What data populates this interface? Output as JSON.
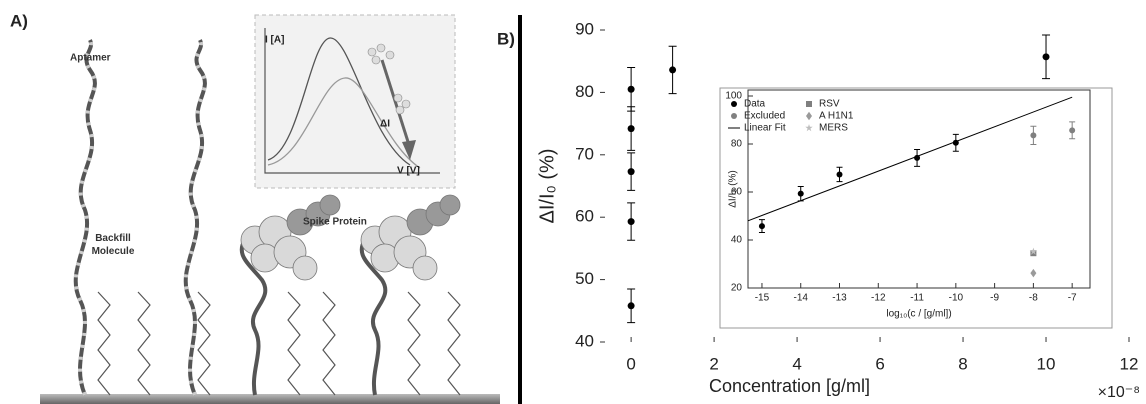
{
  "panel_labels": [
    "A)",
    "B)"
  ],
  "illustration": {
    "aptamer": "Aptamer",
    "backfill": "Backfill Molecule",
    "spike": "Spike Protein",
    "inset_y": "I [A]",
    "inset_delta": "ΔI",
    "inset_x": "V [V]"
  },
  "chart_data": [
    {
      "type": "scatter",
      "xlabel": "Concentration [g/ml]",
      "ylabel": "ΔI/I₀ (%)",
      "x_multiplier": "×10⁻⁸",
      "x": [
        0,
        0,
        0,
        0,
        0,
        1,
        10
      ],
      "values": [
        80.5,
        74.2,
        67.3,
        59.3,
        45.8,
        83.6,
        85.7
      ],
      "errors": [
        3.5,
        3.5,
        3,
        3,
        2.7,
        3.8,
        3.5
      ],
      "color": "#000000",
      "xlim": [
        -0.75,
        12
      ],
      "ylim": [
        40,
        90
      ],
      "xticks": [
        0,
        2,
        4,
        6,
        8,
        10,
        12
      ],
      "yticks": [
        40,
        50,
        60,
        70,
        80,
        90
      ]
    },
    {
      "type": "scatter",
      "xlabel": "log₁₀(c / [g/ml])",
      "ylabel": "ΔI/I₀ (%)",
      "xlim": [
        -15.36,
        -6.54
      ],
      "ylim": [
        20,
        100
      ],
      "xticks": [
        -15,
        -14,
        -13,
        -12,
        -11,
        -10,
        -9,
        -8,
        -7
      ],
      "yticks": [
        20,
        40,
        60,
        80,
        100
      ],
      "legend": "upper left",
      "series": [
        {
          "name": "Data",
          "color": "#000000",
          "marker": "circle",
          "x": [
            -15,
            -14,
            -13,
            -11,
            -10
          ],
          "values": [
            45.8,
            59.3,
            67.3,
            74.2,
            80.5
          ],
          "errors": [
            2.7,
            3,
            3,
            3.5,
            3.5
          ]
        },
        {
          "name": "Excluded",
          "color": "#808080",
          "marker": "circle",
          "x": [
            -8,
            -7
          ],
          "values": [
            83.6,
            85.7
          ],
          "errors": [
            3.8,
            3.5
          ]
        },
        {
          "name": "Linear Fit",
          "color": "#000000",
          "marker": "line",
          "x": [
            -15.36,
            -7
          ],
          "values": [
            48,
            99.5
          ]
        },
        {
          "name": "RSV",
          "color": "#7f7f7f",
          "marker": "square",
          "x": [
            -8
          ],
          "values": [
            34.5
          ]
        },
        {
          "name": "A H1N1",
          "color": "#9a9a9a",
          "marker": "diamond",
          "x": [
            -8
          ],
          "values": [
            26.2
          ]
        },
        {
          "name": "MERS",
          "color": "#bdbdbd",
          "marker": "star",
          "x": [
            -8
          ],
          "values": [
            35.2
          ]
        }
      ]
    }
  ]
}
